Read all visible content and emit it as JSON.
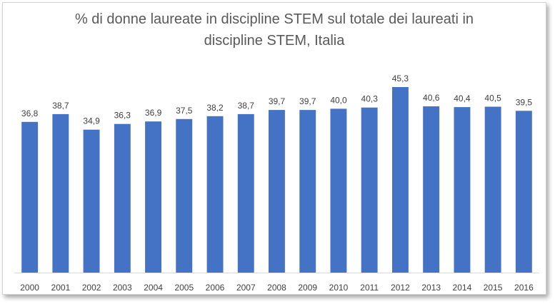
{
  "chart_data": {
    "type": "bar",
    "title": "% di donne laureate in discipline STEM sul totale dei laureati in discipline STEM, Italia",
    "title_lines": [
      "% di donne laureate in discipline STEM sul totale dei laureati in",
      "discipline STEM, Italia"
    ],
    "categories": [
      "2000",
      "2001",
      "2002",
      "2003",
      "2004",
      "2005",
      "2006",
      "2007",
      "2008",
      "2009",
      "2010",
      "2011",
      "2012",
      "2013",
      "2014",
      "2015",
      "2016"
    ],
    "values": [
      36.8,
      38.7,
      34.9,
      36.3,
      36.9,
      37.5,
      38.2,
      38.7,
      39.7,
      39.7,
      40.0,
      40.3,
      45.3,
      40.6,
      40.4,
      40.5,
      39.5
    ],
    "value_labels": [
      "36,8",
      "38,7",
      "34,9",
      "36,3",
      "36,9",
      "37,5",
      "38,2",
      "38,7",
      "39,7",
      "39,7",
      "40,0",
      "40,3",
      "45,3",
      "40,6",
      "40,4",
      "40,5",
      "39,5"
    ],
    "xlabel": "",
    "ylabel": "",
    "ylim": [
      0,
      45.3
    ],
    "grid": false,
    "legend": "none",
    "bar_color": "#4472c4"
  }
}
